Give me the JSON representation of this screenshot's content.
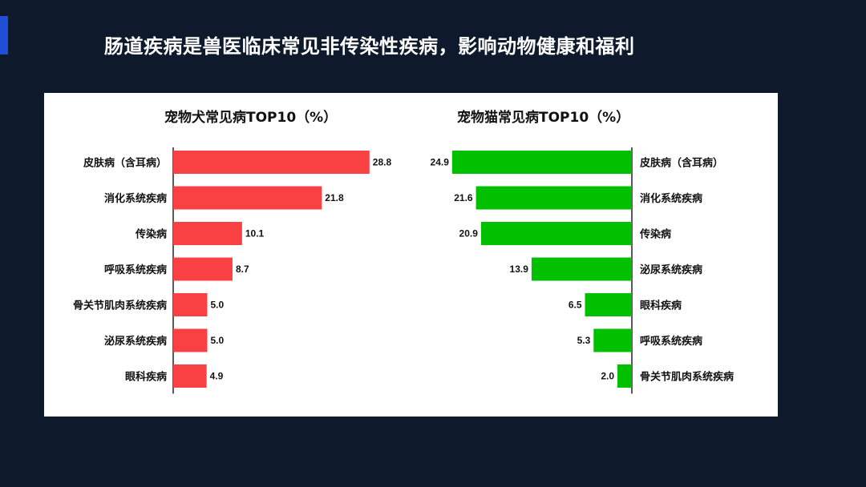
{
  "slide": {
    "title": "肠道疾病是兽医临床常见非传染性疾病，影响动物健康和福利"
  },
  "colors": {
    "background": "#0e1a2b",
    "accent": "#1f4fd6",
    "dog_bar": "#f94144",
    "cat_bar": "#00c000",
    "highlight_label": "#1aa3e8"
  },
  "chart_data": [
    {
      "type": "bar",
      "orientation": "horizontal",
      "title": "宠物犬常见病TOP10（%）",
      "categories": [
        "皮肤病（含耳病）",
        "消化系统疾病",
        "传染病",
        "呼吸系统疾病",
        "骨关节肌肉系统疾病",
        "泌尿系统疾病",
        "眼科疾病"
      ],
      "values": [
        28.8,
        21.8,
        10.1,
        8.7,
        5.0,
        5.0,
        4.9
      ],
      "value_labels": [
        "28.8",
        "21.8",
        "10.1",
        "8.7",
        "5.0",
        "5.0",
        "4.9"
      ],
      "highlight": "消化系统疾病",
      "bar_color": "#f94144",
      "direction": "left-to-right",
      "xlim": [
        0,
        30
      ]
    },
    {
      "type": "bar",
      "orientation": "horizontal",
      "title": "宠物猫常见病TOP10（%）",
      "categories": [
        "皮肤病（含耳病）",
        "消化系统疾病",
        "传染病",
        "泌尿系统疾病",
        "眼科疾病",
        "呼吸系统疾病",
        "骨关节肌肉系统疾病"
      ],
      "values": [
        24.9,
        21.6,
        20.9,
        13.9,
        6.5,
        5.3,
        2.0
      ],
      "value_labels": [
        "24.9",
        "21.6",
        "20.9",
        "13.9",
        "6.5",
        "5.3",
        "2.0"
      ],
      "highlight": "消化系统疾病",
      "bar_color": "#00c000",
      "direction": "right-to-left",
      "xlim": [
        0,
        26
      ]
    }
  ]
}
